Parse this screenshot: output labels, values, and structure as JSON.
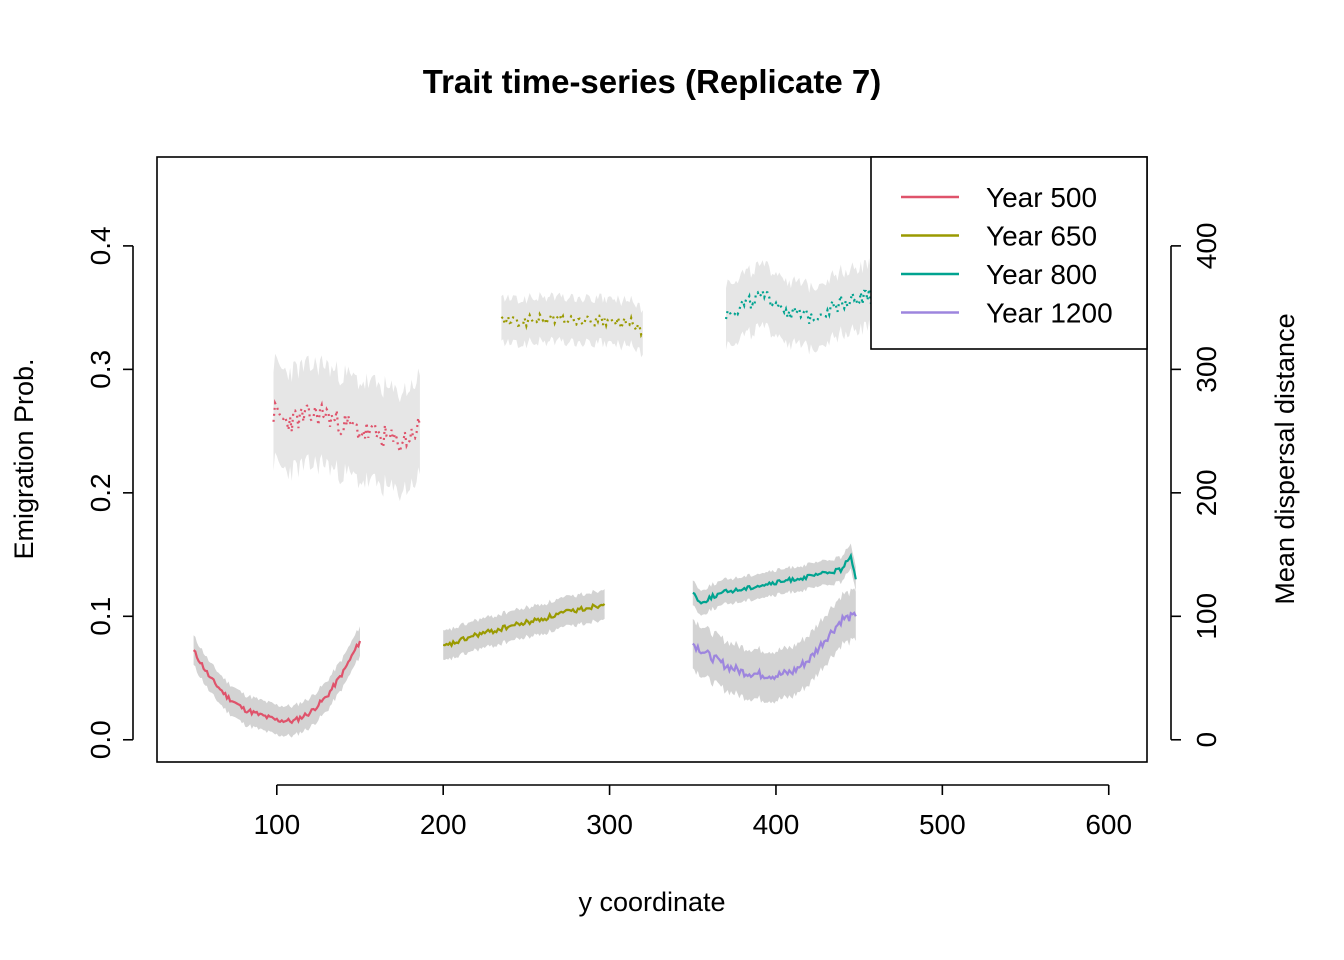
{
  "chart_data": {
    "type": "line",
    "title": "Trait time-series (Replicate 7)",
    "xlabel": "y coordinate",
    "ylabel": "Emigration Prob.",
    "y2label": "Mean dispersal distance",
    "xlim": [
      28,
      623
    ],
    "ylim": [
      -0.018,
      0.472
    ],
    "y2lim": [
      -18,
      472
    ],
    "x_ticks": [
      "100",
      "200",
      "300",
      "400",
      "500",
      "600"
    ],
    "y_ticks": [
      "0.0",
      "0.1",
      "0.2",
      "0.3",
      "0.4"
    ],
    "y2_ticks": [
      "0",
      "100",
      "200",
      "300",
      "400"
    ],
    "grid": false,
    "legend_position": "top-right",
    "series": [
      {
        "name": "Year 500",
        "color": "#DF536B",
        "emigration": {
          "x": [
            50,
            60,
            70,
            80,
            90,
            100,
            110,
            120,
            130,
            140,
            150
          ],
          "y": [
            0.072,
            0.05,
            0.035,
            0.025,
            0.02,
            0.016,
            0.015,
            0.022,
            0.035,
            0.055,
            0.08
          ],
          "band": 0.012
        },
        "distance": {
          "x": [
            98,
            105,
            112,
            120,
            128,
            135,
            142,
            150,
            158,
            165,
            172,
            180,
            186
          ],
          "y": [
            265,
            258,
            260,
            262,
            265,
            258,
            255,
            250,
            248,
            245,
            240,
            245,
            255
          ],
          "band": 40
        }
      },
      {
        "name": "Year 650",
        "color": "#9A9A00",
        "emigration": {
          "x": [
            200,
            210,
            220,
            230,
            240,
            250,
            260,
            270,
            280,
            290,
            297
          ],
          "y": [
            0.075,
            0.08,
            0.085,
            0.088,
            0.092,
            0.095,
            0.098,
            0.102,
            0.105,
            0.108,
            0.11
          ],
          "band": 0.012
        },
        "distance": {
          "x": [
            235,
            245,
            255,
            265,
            275,
            285,
            295,
            305,
            315,
            320
          ],
          "y": [
            340,
            338,
            340,
            341,
            340,
            339,
            339,
            338,
            337,
            330
          ],
          "band": 18
        }
      },
      {
        "name": "Year 800",
        "color": "#00A390",
        "emigration": {
          "x": [
            350,
            355,
            360,
            370,
            380,
            390,
            400,
            410,
            420,
            430,
            440,
            445,
            448
          ],
          "y": [
            0.12,
            0.11,
            0.115,
            0.12,
            0.122,
            0.125,
            0.127,
            0.13,
            0.132,
            0.135,
            0.138,
            0.15,
            0.13
          ],
          "band": 0.01
        },
        "distance": {
          "x": [
            370,
            380,
            390,
            400,
            410,
            420,
            430,
            440,
            450,
            460
          ],
          "y": [
            345,
            352,
            358,
            355,
            345,
            342,
            348,
            355,
            358,
            360
          ],
          "band": 25
        }
      },
      {
        "name": "Year 1200",
        "color": "#9D85DE",
        "emigration": {
          "x": [
            350,
            360,
            370,
            380,
            390,
            400,
            410,
            420,
            430,
            440,
            448
          ],
          "y": [
            0.078,
            0.068,
            0.06,
            0.055,
            0.053,
            0.052,
            0.055,
            0.065,
            0.082,
            0.098,
            0.1
          ],
          "band": 0.02
        }
      }
    ]
  }
}
